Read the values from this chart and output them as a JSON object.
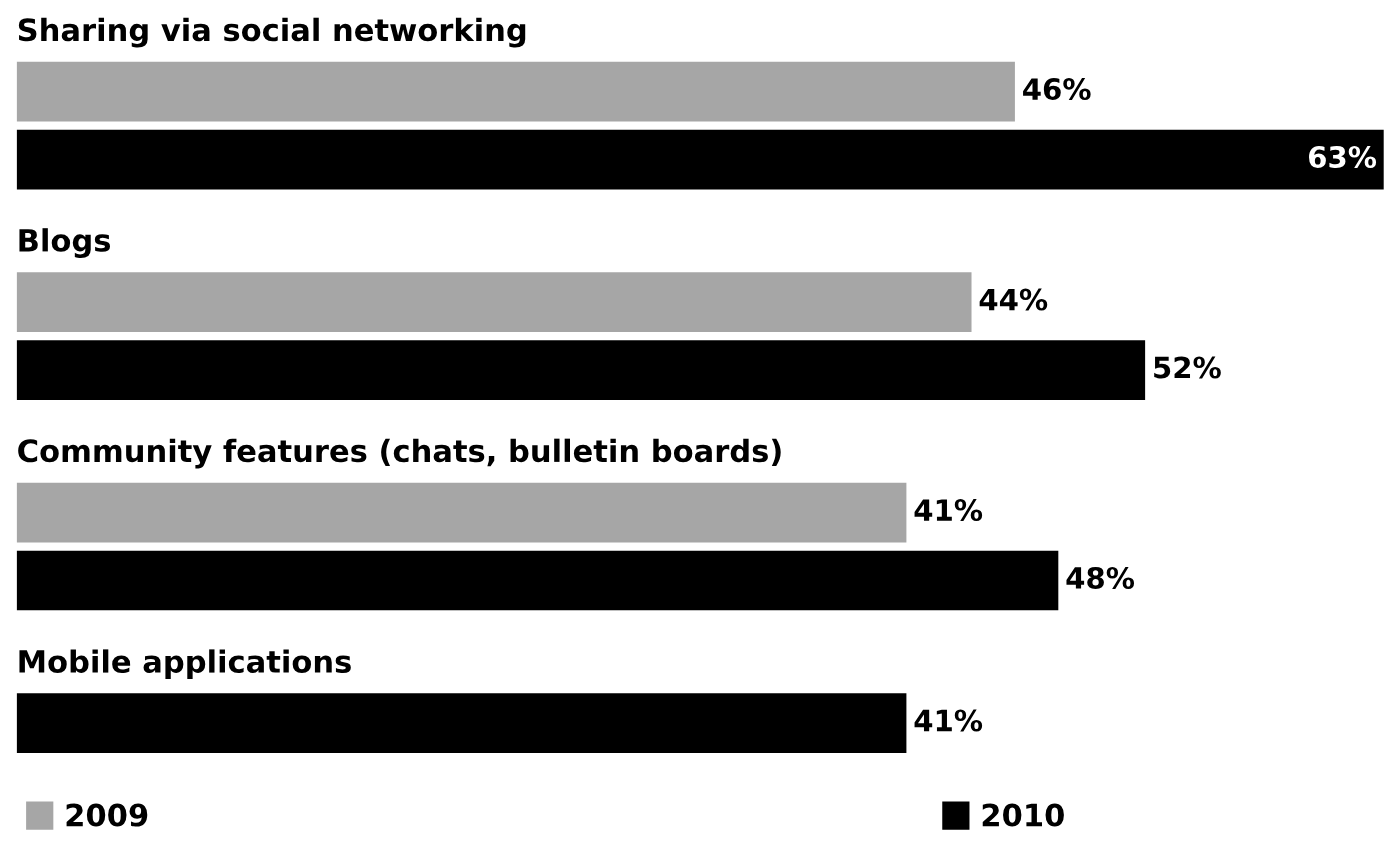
{
  "chart_data": {
    "type": "bar",
    "orientation": "horizontal",
    "categories": [
      "Sharing via social networking",
      "Blogs",
      "Community features (chats, bulletin boards)",
      "Mobile applications"
    ],
    "series": [
      {
        "name": "2009",
        "color": "#a6a6a6",
        "values": [
          46,
          44,
          41,
          null
        ],
        "value_labels": [
          "46%",
          "44%",
          "41%",
          null
        ]
      },
      {
        "name": "2010",
        "color": "#000000",
        "values": [
          63,
          52,
          48,
          41
        ],
        "value_labels": [
          "63%",
          "52%",
          "48%",
          "41%"
        ]
      }
    ],
    "xlim": [
      0,
      63
    ],
    "legend": "bottom"
  }
}
